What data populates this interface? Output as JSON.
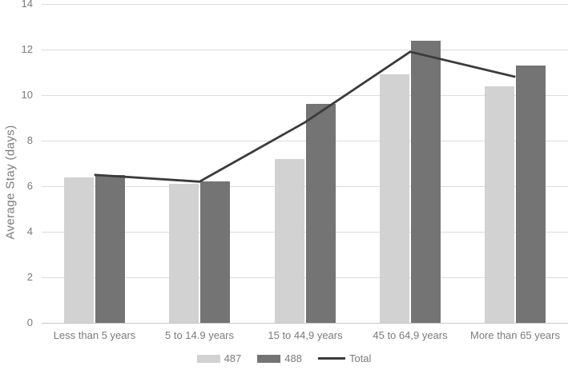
{
  "chart_data": {
    "type": "bar",
    "subtype": "grouped-bars-with-line-overlay",
    "title": "",
    "xlabel": "",
    "ylabel": "Average Stay (days)",
    "ylim": [
      0,
      14
    ],
    "ytick_step": 2,
    "grid": true,
    "legend_position": "bottom",
    "categories": [
      "Less than 5 years",
      "5 to 14.9 years",
      "15 to 44,9 years",
      "45 to 64,9 years",
      "More than 65 years"
    ],
    "series": [
      {
        "name": "487",
        "type": "bar",
        "color": "#d2d2d2",
        "values": [
          6.4,
          6.1,
          7.2,
          10.9,
          10.4
        ]
      },
      {
        "name": "488",
        "type": "bar",
        "color": "#747474",
        "values": [
          6.5,
          6.2,
          9.6,
          12.4,
          11.3
        ]
      },
      {
        "name": "Total",
        "type": "line",
        "color": "#3b3b3b",
        "values": [
          6.5,
          6.2,
          8.8,
          11.9,
          10.8
        ]
      }
    ],
    "colors": {
      "background": "#ffffff",
      "gridline": "#dcdcdc",
      "axis_line": "#c8c8c8",
      "tick_label": "#7b7b7b"
    }
  }
}
